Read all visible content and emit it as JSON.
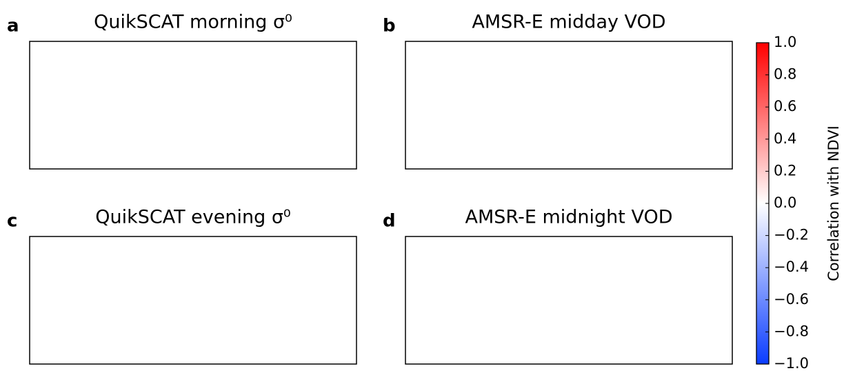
{
  "panels": [
    {
      "letter": "a",
      "title": "QuikSCAT morning σ⁰"
    },
    {
      "letter": "b",
      "title": "AMSR-E midday VOD"
    },
    {
      "letter": "c",
      "title": "QuikSCAT evening σ⁰"
    },
    {
      "letter": "d",
      "title": "AMSR-E midnight VOD"
    }
  ],
  "colorbar": {
    "label": "Correlation with NDVI",
    "lim": [
      -1,
      1
    ],
    "colors": [
      "#0a3cff",
      "#ffffff",
      "#ff0000"
    ],
    "ticks": [
      {
        "value": -1,
        "label": "−1.0"
      },
      {
        "value": -0.8,
        "label": "−0.8"
      },
      {
        "value": -0.6,
        "label": "−0.6"
      },
      {
        "value": -0.4,
        "label": "−0.4"
      },
      {
        "value": -0.2,
        "label": "−0.2"
      },
      {
        "value": 0,
        "label": "0.0"
      },
      {
        "value": 0.2,
        "label": "0.2"
      },
      {
        "value": 0.4,
        "label": "0.4"
      },
      {
        "value": 0.6,
        "label": "0.6"
      },
      {
        "value": 0.8,
        "label": "0.8"
      },
      {
        "value": 1,
        "label": "1.0"
      }
    ]
  }
}
